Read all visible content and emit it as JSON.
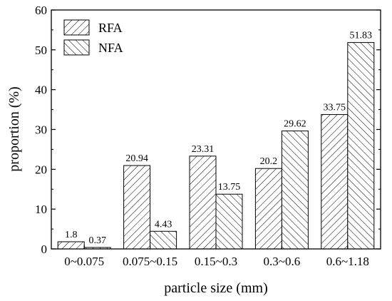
{
  "chart_data": {
    "type": "bar",
    "categories": [
      "0~0.075",
      "0.075~0.15",
      "0.15~0.3",
      "0.3~0.6",
      "0.6~1.18"
    ],
    "series": [
      {
        "name": "RFA",
        "values": [
          1.8,
          20.94,
          23.31,
          20.2,
          33.75
        ],
        "labels": [
          "1.8",
          "20.94",
          "23.31",
          "20.2",
          "33.75"
        ],
        "pattern": "forward-hatch"
      },
      {
        "name": "NFA",
        "values": [
          0.37,
          4.43,
          13.75,
          29.62,
          51.83
        ],
        "labels": [
          "0.37",
          "4.43",
          "13.75",
          "29.62",
          "51.83"
        ],
        "pattern": "back-hatch"
      }
    ],
    "xlabel": "particle size (mm)",
    "ylabel": "proportion (%)",
    "ylim": [
      0,
      60
    ],
    "yticks": [
      0,
      10,
      20,
      30,
      40,
      50,
      60
    ],
    "ytick_labels": [
      "0",
      "10",
      "20",
      "30",
      "40",
      "50",
      "60"
    ],
    "grid": false,
    "legend": "top-left",
    "colors": {
      "bar_fill": "#ffffff",
      "stroke": "#000000"
    }
  }
}
